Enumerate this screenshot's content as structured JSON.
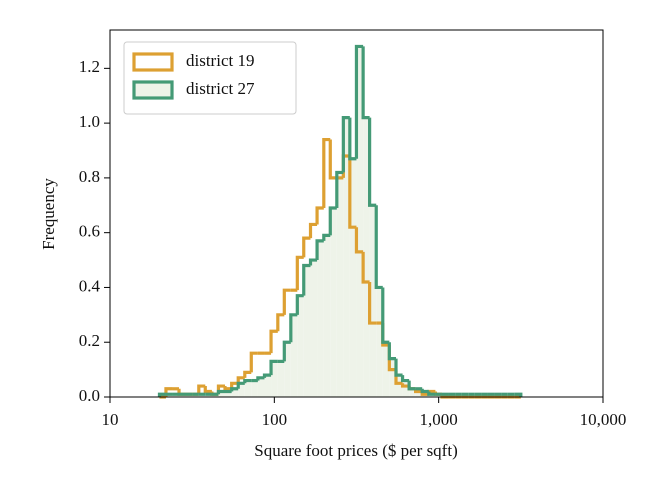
{
  "chart_data": {
    "type": "histogram",
    "xlabel": "Square foot prices ($ per sqft)",
    "ylabel": "Frequency",
    "xscale": "log",
    "xlim": [
      10,
      10000
    ],
    "xticks": [
      10,
      100,
      {
        "value": 1000,
        "label": "1,000"
      },
      {
        "value": 10000,
        "label": "10,000"
      }
    ],
    "ylim": [
      0,
      1.34
    ],
    "yticks": [
      {
        "value": 0,
        "label": "0.0"
      },
      0.2,
      0.4,
      0.6,
      0.8,
      {
        "value": 1,
        "label": "1.0"
      },
      1.2
    ],
    "legend": "upper left",
    "bins": [
      20.0,
      21.9,
      24.0,
      26.3,
      28.8,
      31.6,
      34.7,
      38.0,
      41.7,
      45.7,
      50.1,
      55.0,
      60.3,
      66.1,
      72.4,
      79.4,
      87.1,
      95.5,
      105,
      115,
      126,
      138,
      151,
      166,
      182,
      200,
      219,
      240,
      263,
      288,
      316,
      347,
      380,
      417,
      457,
      501,
      550,
      603,
      661,
      724,
      794,
      871,
      955,
      1047,
      1148,
      1259,
      1380,
      1514,
      1660,
      1820,
      1995,
      2188,
      2399,
      2630,
      2884,
      3162
    ],
    "series": [
      {
        "name": "district 19",
        "color": "#dda032",
        "fill": "none",
        "values": [
          0,
          0.03,
          0.03,
          0.01,
          0.01,
          0.01,
          0.04,
          0.02,
          0.01,
          0.04,
          0.03,
          0.05,
          0.07,
          0.09,
          0.16,
          0.16,
          0.16,
          0.24,
          0.3,
          0.39,
          0.39,
          0.51,
          0.58,
          0.63,
          0.69,
          0.94,
          0.8,
          0.8,
          0.88,
          0.62,
          0.53,
          0.42,
          0.27,
          0.27,
          0.19,
          0.1,
          0.05,
          0.04,
          0.03,
          0.02,
          0.01,
          0.02,
          0.01,
          0,
          0,
          0,
          0,
          0,
          0,
          0,
          0,
          0,
          0,
          0,
          0
        ]
      },
      {
        "name": "district 27",
        "color": "#449a76",
        "fill": "#eef3e9",
        "values": [
          0.01,
          0.01,
          0.01,
          0.01,
          0.01,
          0.01,
          0.01,
          0.01,
          0.01,
          0.02,
          0.02,
          0.03,
          0.05,
          0.06,
          0.06,
          0.07,
          0.08,
          0.13,
          0.13,
          0.2,
          0.3,
          0.37,
          0.48,
          0.5,
          0.57,
          0.59,
          0.69,
          0.82,
          1.02,
          0.87,
          1.28,
          1.02,
          0.7,
          0.4,
          0.2,
          0.14,
          0.08,
          0.06,
          0.03,
          0.03,
          0.02,
          0.01,
          0.01,
          0.01,
          0.01,
          0.01,
          0.01,
          0.01,
          0.01,
          0.01,
          0.01,
          0.01,
          0.01,
          0.01,
          0.01
        ]
      }
    ]
  }
}
